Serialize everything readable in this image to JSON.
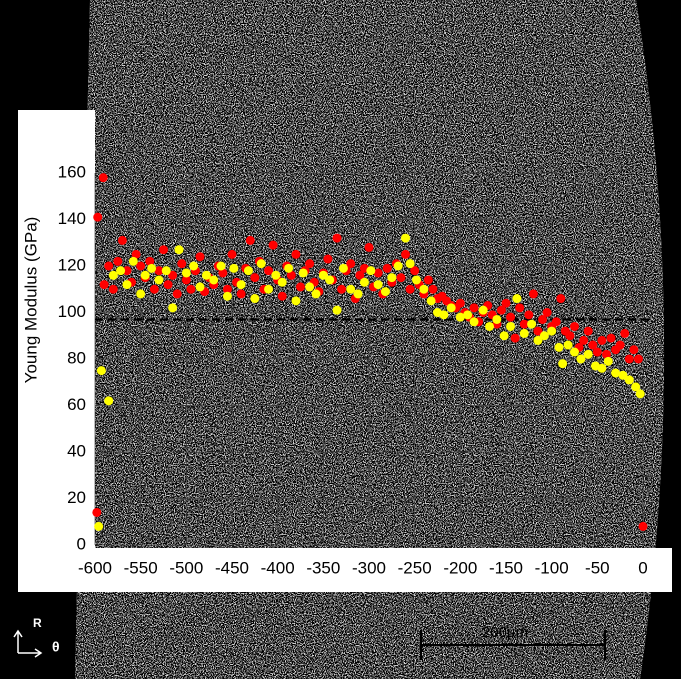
{
  "chart_data": {
    "type": "scatter",
    "ylabel": "Young Modulus (GPa)",
    "xlim": [
      -600,
      0
    ],
    "ylim": [
      0,
      160
    ],
    "xticks": [
      -600,
      -550,
      -500,
      -450,
      -400,
      -350,
      -300,
      -250,
      -200,
      -150,
      -100,
      -50,
      0
    ],
    "yticks": [
      0,
      20,
      40,
      60,
      80,
      100,
      120,
      140,
      160
    ],
    "grid": true,
    "hline": 97,
    "scale_bar": "200µm",
    "axis_r": "R",
    "axis_theta": "θ",
    "series": [
      {
        "color": "#ff0000",
        "x": [
          -598,
          -597,
          -591,
          -590,
          -585,
          -580,
          -575,
          -570,
          -565,
          -560,
          -555,
          -550,
          -545,
          -540,
          -535,
          -530,
          -525,
          -520,
          -515,
          -510,
          -505,
          -500,
          -495,
          -490,
          -485,
          -480,
          -475,
          -470,
          -465,
          -460,
          -455,
          -450,
          -445,
          -440,
          -435,
          -430,
          -425,
          -420,
          -415,
          -410,
          -405,
          -400,
          -395,
          -390,
          -385,
          -380,
          -375,
          -370,
          -365,
          -360,
          -355,
          -350,
          -345,
          -340,
          -335,
          -330,
          -325,
          -320,
          -315,
          -310,
          -305,
          -300,
          -295,
          -290,
          -285,
          -280,
          -275,
          -270,
          -265,
          -260,
          -255,
          -250,
          -245,
          -240,
          -235,
          -230,
          -225,
          -220,
          -215,
          -210,
          -205,
          -200,
          -195,
          -190,
          -185,
          -180,
          -175,
          -170,
          -165,
          -160,
          -155,
          -150,
          -145,
          -140,
          -135,
          -130,
          -125,
          -120,
          -115,
          -110,
          -105,
          -100,
          -95,
          -90,
          -85,
          -80,
          -75,
          -70,
          -65,
          -60,
          -55,
          -50,
          -45,
          -40,
          -35,
          -30,
          -25,
          -20,
          -15,
          -10,
          -5,
          0
        ],
        "values": [
          14,
          141,
          158,
          112,
          120,
          110,
          122,
          131,
          118,
          113,
          125,
          120,
          115,
          122,
          110,
          118,
          127,
          112,
          116,
          108,
          121,
          114,
          110,
          118,
          124,
          109,
          115,
          112,
          120,
          117,
          110,
          125,
          113,
          108,
          119,
          131,
          115,
          122,
          110,
          118,
          129,
          114,
          107,
          120,
          116,
          125,
          111,
          118,
          121,
          113,
          109,
          117,
          123,
          114,
          132,
          110,
          118,
          121,
          106,
          116,
          119,
          128,
          111,
          117,
          108,
          119,
          113,
          121,
          115,
          125,
          110,
          118,
          112,
          108,
          114,
          110,
          106,
          107,
          105,
          103,
          102,
          104,
          100,
          98,
          102,
          96,
          100,
          103,
          99,
          95,
          101,
          104,
          98,
          89,
          102,
          95,
          99,
          108,
          92,
          97,
          100,
          94,
          96,
          106,
          92,
          90,
          94,
          85,
          88,
          92,
          86,
          83,
          88,
          82,
          89,
          84,
          86,
          91,
          80,
          84,
          80,
          8
        ]
      },
      {
        "color": "#ffff00",
        "x": [
          -596,
          -593,
          -585,
          -580,
          -572,
          -565,
          -558,
          -550,
          -545,
          -538,
          -530,
          -522,
          -515,
          -508,
          -500,
          -492,
          -485,
          -478,
          -470,
          -462,
          -455,
          -448,
          -440,
          -432,
          -425,
          -418,
          -410,
          -402,
          -395,
          -388,
          -380,
          -372,
          -365,
          -358,
          -350,
          -343,
          -335,
          -328,
          -320,
          -312,
          -305,
          -298,
          -290,
          -282,
          -275,
          -268,
          -260,
          -255,
          -248,
          -240,
          -232,
          -225,
          -218,
          -210,
          -200,
          -192,
          -185,
          -175,
          -168,
          -160,
          -152,
          -145,
          -138,
          -130,
          -122,
          -115,
          -108,
          -100,
          -92,
          -88,
          -82,
          -75,
          -68,
          -60,
          -52,
          -45,
          -38,
          -30,
          -22,
          -15,
          -8,
          -3
        ],
        "values": [
          8,
          75,
          62,
          116,
          118,
          112,
          122,
          108,
          116,
          119,
          114,
          118,
          102,
          127,
          117,
          120,
          111,
          116,
          114,
          120,
          107,
          119,
          112,
          118,
          106,
          121,
          110,
          116,
          113,
          119,
          105,
          117,
          111,
          108,
          116,
          114,
          101,
          119,
          110,
          108,
          113,
          118,
          112,
          109,
          115,
          120,
          132,
          121,
          114,
          110,
          105,
          100,
          99,
          102,
          98,
          99,
          96,
          101,
          94,
          97,
          90,
          94,
          106,
          91,
          95,
          88,
          90,
          92,
          85,
          78,
          86,
          83,
          80,
          82,
          77,
          76,
          79,
          74,
          73,
          71,
          68,
          65
        ]
      }
    ]
  }
}
